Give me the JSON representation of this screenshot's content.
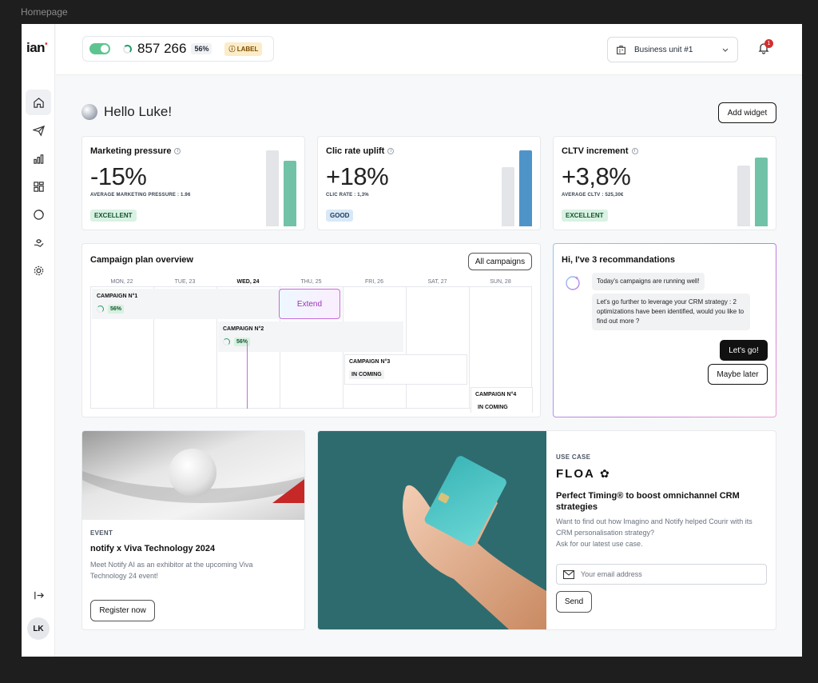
{
  "window": {
    "title": "Homepage"
  },
  "sidebar": {
    "logo": "ian",
    "items": [
      {
        "name": "home"
      },
      {
        "name": "campaigns"
      },
      {
        "name": "analytics"
      },
      {
        "name": "widgets"
      },
      {
        "name": "audience"
      },
      {
        "name": "recommendations"
      },
      {
        "name": "settings"
      }
    ],
    "user_initials": "LK"
  },
  "topbar": {
    "counter": "857 266",
    "counter_pct": "56%",
    "label_chip": "LABEL",
    "business_unit": "Business unit #1",
    "notifications": "1"
  },
  "greeting": "Hello Luke!",
  "add_widget": "Add widget",
  "kpis": [
    {
      "title": "Marketing pressure",
      "value": "-15%",
      "sub": "AVERAGE MARKETING PRESSURE : 1.96",
      "status": "EXCELLENT",
      "bar_prev": 0.95,
      "bar_curr": 0.82
    },
    {
      "title": "Clic rate uplift",
      "value": "+18%",
      "sub": "CLIC RATE : 1,3%",
      "status": "GOOD",
      "bar_prev": 0.74,
      "bar_curr": 0.95
    },
    {
      "title": "CLTV increment",
      "value": "+3,8%",
      "sub": "AVERAGE CLTV : 525,30€",
      "status": "EXCELLENT",
      "bar_prev": 0.76,
      "bar_curr": 0.86
    }
  ],
  "campaign_plan": {
    "title": "Campaign plan overview",
    "all_button": "All campaigns",
    "days": [
      "MON, 22",
      "TUE, 23",
      "WED, 24",
      "THU, 25",
      "FRI, 26",
      "SAT, 27",
      "SUN, 28"
    ],
    "campaigns": [
      {
        "name": "CAMPAIGN N°1",
        "progress": "56%"
      },
      {
        "name": "CAMPAIGN N°2",
        "progress": "56%"
      },
      {
        "name": "CAMPAIGN N°3",
        "status": "IN COMING"
      },
      {
        "name": "CAMPAIGN N°4",
        "status": "IN COMING"
      }
    ],
    "extend": "Extend"
  },
  "recommendations": {
    "title": "Hi, I've 3 recommandations",
    "msg1": "Today's campaigns are running well!",
    "msg2": "Let's go further to leverage your CRM strategy : 2 optimizations have been identified, would you like to find out more ?",
    "go": "Let's go!",
    "later": "Maybe later"
  },
  "event": {
    "eyebrow": "EVENT",
    "title": "notify x Viva Technology 2024",
    "text": "Meet Notify AI as an exhibitor at the upcoming Viva Technology 24 event!",
    "button": "Register now"
  },
  "use_case": {
    "eyebrow": "USE CASE",
    "brand": "FLOA",
    "title": "Perfect Timing® to boost omnichannel CRM strategies",
    "text1": "Want to find out how Imagino and Notify helped Courir with its CRM personalisation strategy?",
    "text2": "Ask for our latest use case.",
    "email_placeholder": "Your email address",
    "send": "Send"
  },
  "colors": {
    "bar_grey": "#e3e5e8",
    "bar_green": "#72c2a8",
    "bar_blue": "#4f94c9",
    "chip_green": "#d9f2e3",
    "chip_blue": "#d8e8f7"
  }
}
